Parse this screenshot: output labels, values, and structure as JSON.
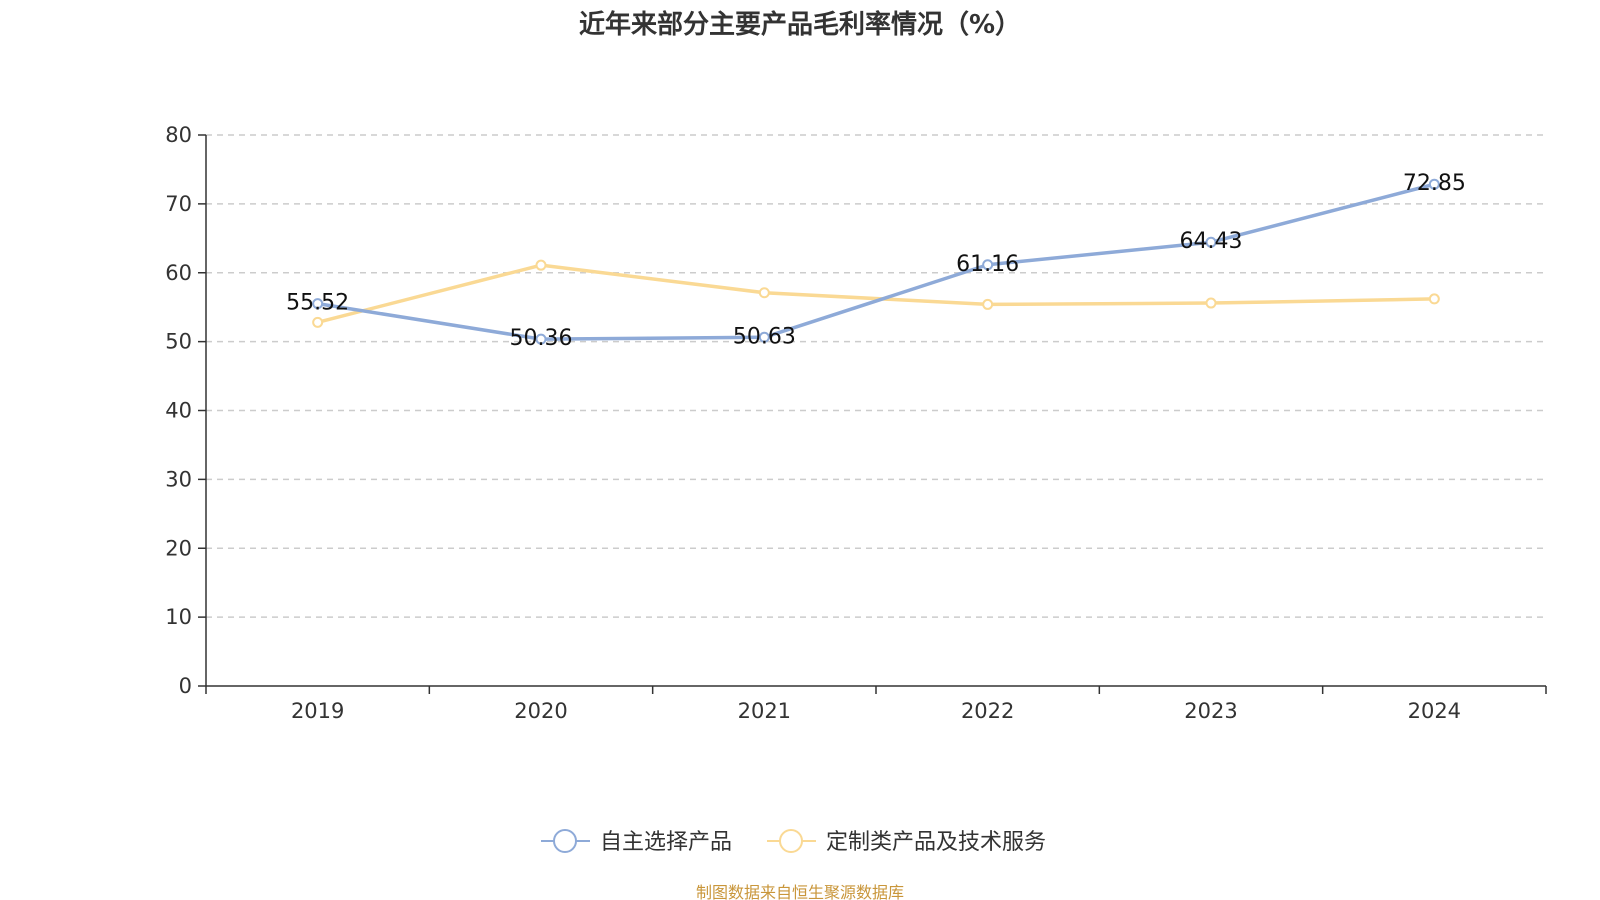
{
  "chart_data": {
    "type": "line",
    "title": "近年来部分主要产品毛利率情况（%）",
    "categories": [
      "2019",
      "2020",
      "2021",
      "2022",
      "2023",
      "2024"
    ],
    "ylim": [
      0,
      80
    ],
    "yticks": [
      "0",
      "10",
      "20",
      "30",
      "40",
      "50",
      "60",
      "70",
      "80"
    ],
    "grid": true,
    "legend_position": "bottom",
    "series": [
      {
        "name": "自主选择产品",
        "color": "#8eaad8",
        "values": [
          55.52,
          50.36,
          50.63,
          61.16,
          64.43,
          72.85
        ],
        "labels": [
          "55.52",
          "50.36",
          "50.63",
          "61.16",
          "64.43",
          "72.85"
        ]
      },
      {
        "name": "定制类产品及技术服务",
        "color": "#fad994",
        "values": [
          52.8,
          61.1,
          57.1,
          55.4,
          55.6,
          56.2
        ]
      }
    ],
    "source": "制图数据来自恒生聚源数据库"
  }
}
